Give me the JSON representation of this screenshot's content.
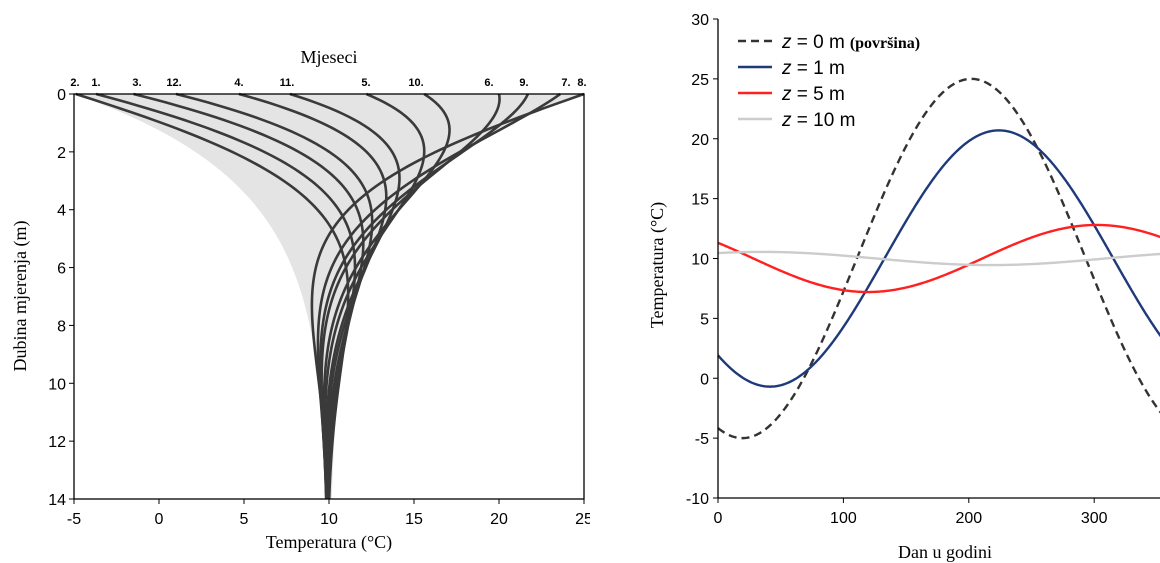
{
  "chart_data": [
    {
      "type": "line",
      "title": "Mjeseci",
      "xlabel": "Temperatura (°C)",
      "ylabel": "Dubina mjerenja (m)",
      "xlim": [
        -5,
        25
      ],
      "ylim": [
        14,
        0
      ],
      "x_ticks": [
        "-5",
        "0",
        "5",
        "10",
        "15",
        "20",
        "25"
      ],
      "y_ticks": [
        "0",
        "2",
        "4",
        "6",
        "8",
        "10",
        "12",
        "14"
      ],
      "months": [
        {
          "label": "1.",
          "surface_temp": -3.7
        },
        {
          "label": "2.",
          "surface_temp": -4.9
        },
        {
          "label": "3.",
          "surface_temp": -1.5
        },
        {
          "label": "4.",
          "surface_temp": 4.7
        },
        {
          "label": "5.",
          "surface_temp": 12.2
        },
        {
          "label": "6.",
          "surface_temp": 20.0
        },
        {
          "label": "7.",
          "surface_temp": 23.6
        },
        {
          "label": "8.",
          "surface_temp": 25.0
        },
        {
          "label": "9.",
          "surface_temp": 21.7
        },
        {
          "label": "10.",
          "surface_temp": 15.6
        },
        {
          "label": "11.",
          "surface_temp": 7.7
        },
        {
          "label": "12.",
          "surface_temp": 1.0
        }
      ],
      "mean_temp": 10,
      "grid": false
    },
    {
      "type": "line",
      "xlabel": "Dan u godini",
      "ylabel": "Temperatura (°C)",
      "xlim": [
        0,
        365
      ],
      "ylim": [
        -10,
        30
      ],
      "x_ticks": [
        "0",
        "100",
        "200",
        "300"
      ],
      "y_ticks": [
        "-10",
        "-5",
        "0",
        "5",
        "10",
        "15",
        "20",
        "25",
        "30"
      ],
      "legend_position": "top-left",
      "series": [
        {
          "name_prefix": "z",
          "name_value": " = 0 m",
          "name_note": "(površina)",
          "color": "#333333",
          "dash": true,
          "mean": 10,
          "amplitude": 15,
          "peak_day": 202
        },
        {
          "name_prefix": "z",
          "name_value": " = 1 m",
          "name_note": "",
          "color": "#1f3a7a",
          "dash": false,
          "mean": 10,
          "amplitude": 10.7,
          "peak_day": 224
        },
        {
          "name_prefix": "z",
          "name_value": " = 5 m",
          "name_note": "",
          "color": "#ff2020",
          "dash": false,
          "mean": 10,
          "amplitude": 2.8,
          "peak_day": 302
        },
        {
          "name_prefix": "z",
          "name_value": " = 10 m",
          "name_note": "",
          "color": "#cccccc",
          "dash": false,
          "mean": 10,
          "amplitude": 0.55,
          "peak_day": 35
        }
      ]
    }
  ]
}
